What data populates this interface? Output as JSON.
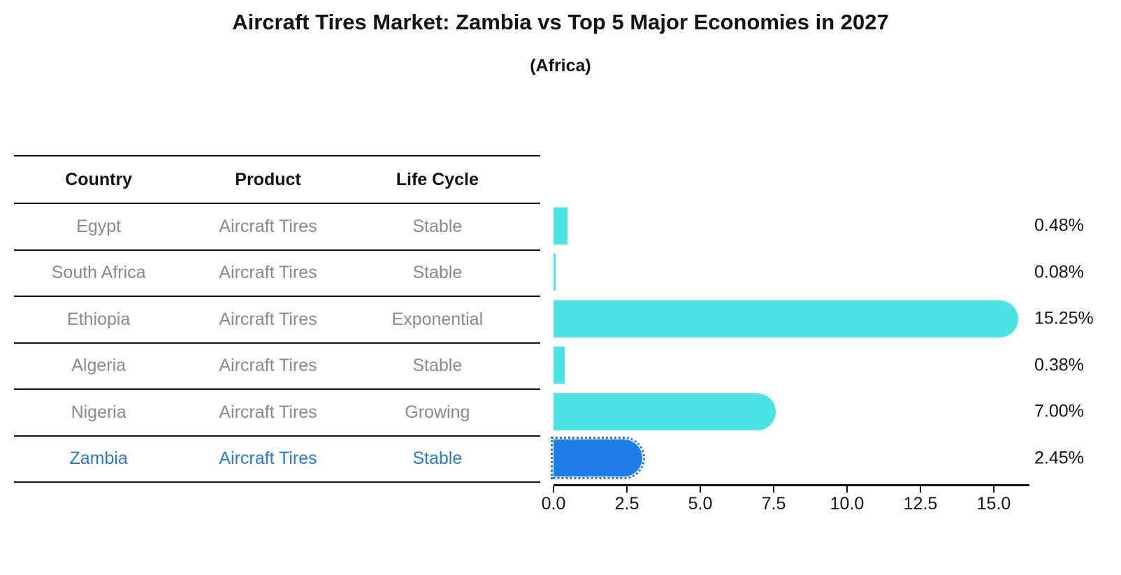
{
  "title": "Aircraft Tires Market: Zambia vs Top 5 Major Economies in 2027",
  "subtitle": "(Africa)",
  "table": {
    "headers": [
      "Country",
      "Product",
      "Life Cycle"
    ],
    "rows": [
      {
        "country": "Egypt",
        "product": "Aircraft Tires",
        "life_cycle": "Stable",
        "highlight": false
      },
      {
        "country": "South Africa",
        "product": "Aircraft Tires",
        "life_cycle": "Stable",
        "highlight": false
      },
      {
        "country": "Ethiopia",
        "product": "Aircraft Tires",
        "life_cycle": "Exponential",
        "highlight": false
      },
      {
        "country": "Algeria",
        "product": "Aircraft Tires",
        "life_cycle": "Stable",
        "highlight": false
      },
      {
        "country": "Nigeria",
        "product": "Aircraft Tires",
        "life_cycle": "Growing",
        "highlight": false
      },
      {
        "country": "Zambia",
        "product": "Aircraft Tires",
        "life_cycle": "Stable",
        "highlight": true
      }
    ]
  },
  "chart_data": {
    "type": "bar",
    "orientation": "horizontal",
    "title": "Aircraft Tires Market: Zambia vs Top 5 Major Economies in 2027",
    "subtitle": "(Africa)",
    "categories": [
      "Egypt",
      "South Africa",
      "Ethiopia",
      "Algeria",
      "Nigeria",
      "Zambia"
    ],
    "values": [
      0.48,
      0.08,
      15.25,
      0.38,
      7.0,
      2.45
    ],
    "value_labels": [
      "0.48%",
      "0.08%",
      "15.25%",
      "0.38%",
      "7.00%",
      "2.45%"
    ],
    "xlabel": "",
    "ylabel": "",
    "xlim": [
      0,
      16.2
    ],
    "xticks": [
      0,
      2.5,
      5,
      7.5,
      10,
      12.5,
      15
    ],
    "xtick_labels": [
      "0.0",
      "2.5",
      "5.0",
      "7.5",
      "10.0",
      "12.5",
      "15.0"
    ],
    "grid": false,
    "legend": null,
    "bar_color": "#4be4e2",
    "highlight_bar_color": "#1e7de9",
    "highlight_text_color": "#2b7bca",
    "text_color": "#141414",
    "muted_text_color": "#8a8a8a",
    "highlight_index": 5,
    "highlight_style": "dotted-outline"
  }
}
